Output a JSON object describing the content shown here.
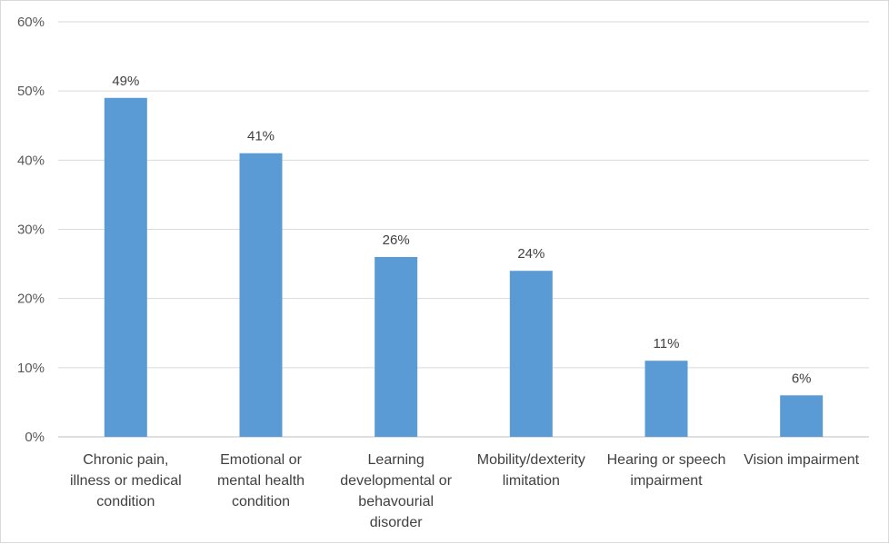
{
  "chart_data": {
    "type": "bar",
    "title": "",
    "xlabel": "",
    "ylabel": "",
    "ylim": [
      0,
      60
    ],
    "yticks": [
      "0%",
      "10%",
      "20%",
      "30%",
      "40%",
      "50%",
      "60%"
    ],
    "categories": [
      [
        "Chronic pain,",
        "illness or medical",
        "condition"
      ],
      [
        "Emotional or",
        "mental health",
        "condition"
      ],
      [
        "Learning",
        "developmental or",
        "behavourial",
        "disorder"
      ],
      [
        "Mobility/dexterity",
        "limitation"
      ],
      [
        "Hearing or speech",
        "impairment"
      ],
      [
        "Vision impairment"
      ]
    ],
    "values": [
      49,
      41,
      26,
      24,
      11,
      6
    ],
    "data_labels": [
      "49%",
      "41%",
      "26%",
      "24%",
      "11%",
      "6%"
    ],
    "bar_color": "#5b9bd5",
    "grid": true,
    "legend": "none"
  }
}
